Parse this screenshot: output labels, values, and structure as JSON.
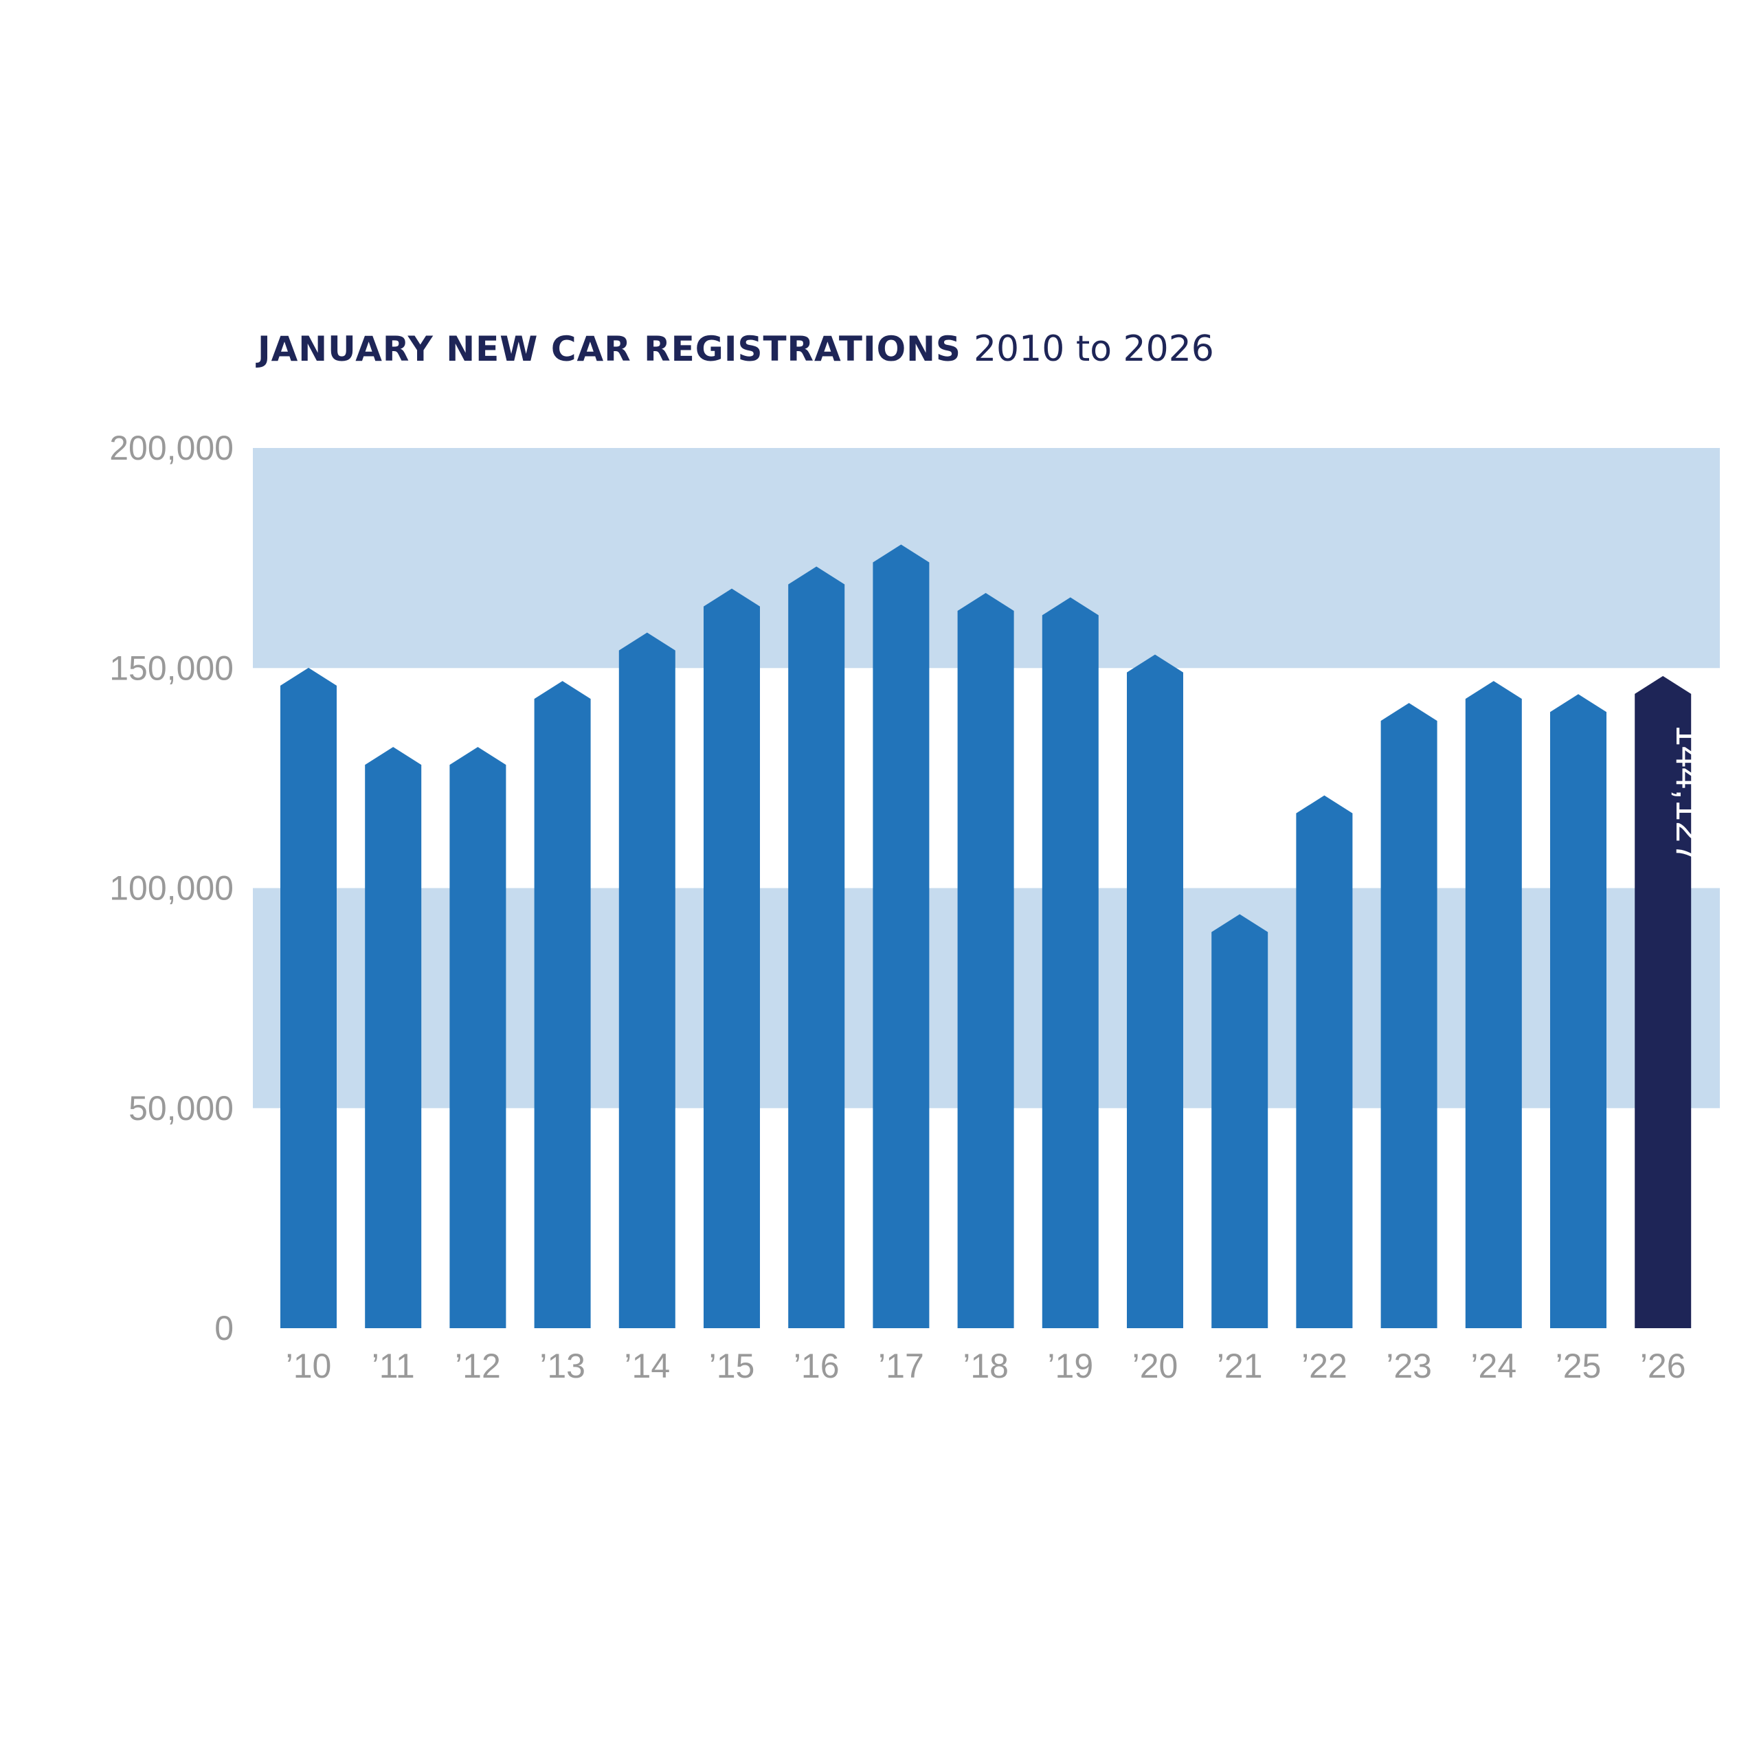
{
  "chart_data": {
    "type": "bar",
    "title_bold": "JANUARY NEW CAR REGISTRATIONS",
    "title_rest": "2010 to 2026",
    "xlabel": "",
    "ylabel": "",
    "ylim": [
      0,
      200000
    ],
    "y_ticks": [
      0,
      50000,
      100000,
      150000,
      200000
    ],
    "y_tick_labels": [
      "0",
      "50,000",
      "100,000",
      "150,000",
      "200,000"
    ],
    "categories": [
      "’10",
      "’11",
      "’12",
      "’13",
      "’14",
      "’15",
      "’16",
      "’17",
      "’18",
      "’19",
      "’20",
      "’21",
      "’22",
      "’23",
      "’24",
      "’25",
      "’26"
    ],
    "values": [
      146000,
      128000,
      128000,
      143000,
      154000,
      164000,
      169000,
      174000,
      163000,
      162000,
      149000,
      90000,
      117000,
      138000,
      143000,
      140000,
      144127
    ],
    "highlight_index": 16,
    "data_labels": [
      {
        "index": 16,
        "text": "144,127"
      }
    ],
    "band_ranges": [
      [
        50000,
        100000
      ],
      [
        150000,
        200000
      ]
    ],
    "colors": {
      "bar": "#2274BA",
      "highlight_bar": "#1E2557",
      "band": "#C6DBEE",
      "title": "#1E2557",
      "tick_text": "#999999",
      "data_label": "#FFFFFF"
    }
  }
}
